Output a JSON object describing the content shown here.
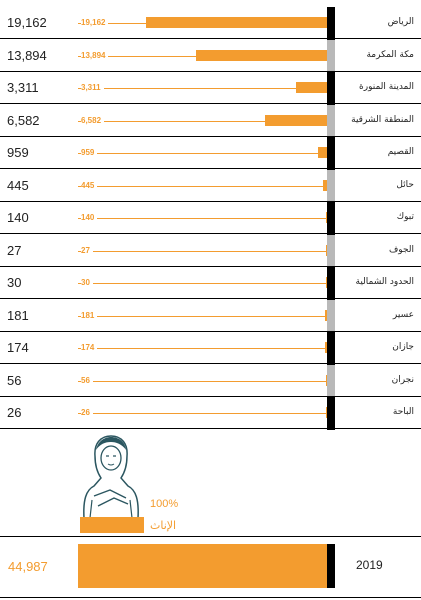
{
  "chart_data": {
    "type": "bar",
    "orientation": "horizontal",
    "categories": [
      "الرياض",
      "مكة المكرمة",
      "المدينة المنورة",
      "المنطقة الشرقية",
      "القصيم",
      "حائل",
      "تبوك",
      "الجوف",
      "الحدود الشمالية",
      "عسير",
      "جازان",
      "نجران",
      "الباحة"
    ],
    "totals_text": [
      "19,162",
      "13,894",
      "3,311",
      "6,582",
      "959",
      "445",
      "140",
      "27",
      "30",
      "181",
      "174",
      "56",
      "26"
    ],
    "values": [
      19162,
      13894,
      3311,
      6582,
      959,
      445,
      140,
      27,
      30,
      181,
      174,
      56,
      26
    ],
    "value_labels": [
      "19,162",
      "13,894",
      "3,311",
      "6,582",
      "959",
      "445",
      "140",
      "27",
      "30",
      "181",
      "174",
      "56",
      "26"
    ],
    "xlim": [
      0,
      19162
    ],
    "axis_side": "right",
    "bar_color": "#f39c2f",
    "legend": {
      "label": "الإناث",
      "percent": "100%"
    },
    "summary": {
      "year": "2019",
      "total": "44,987",
      "value": 44987
    }
  }
}
